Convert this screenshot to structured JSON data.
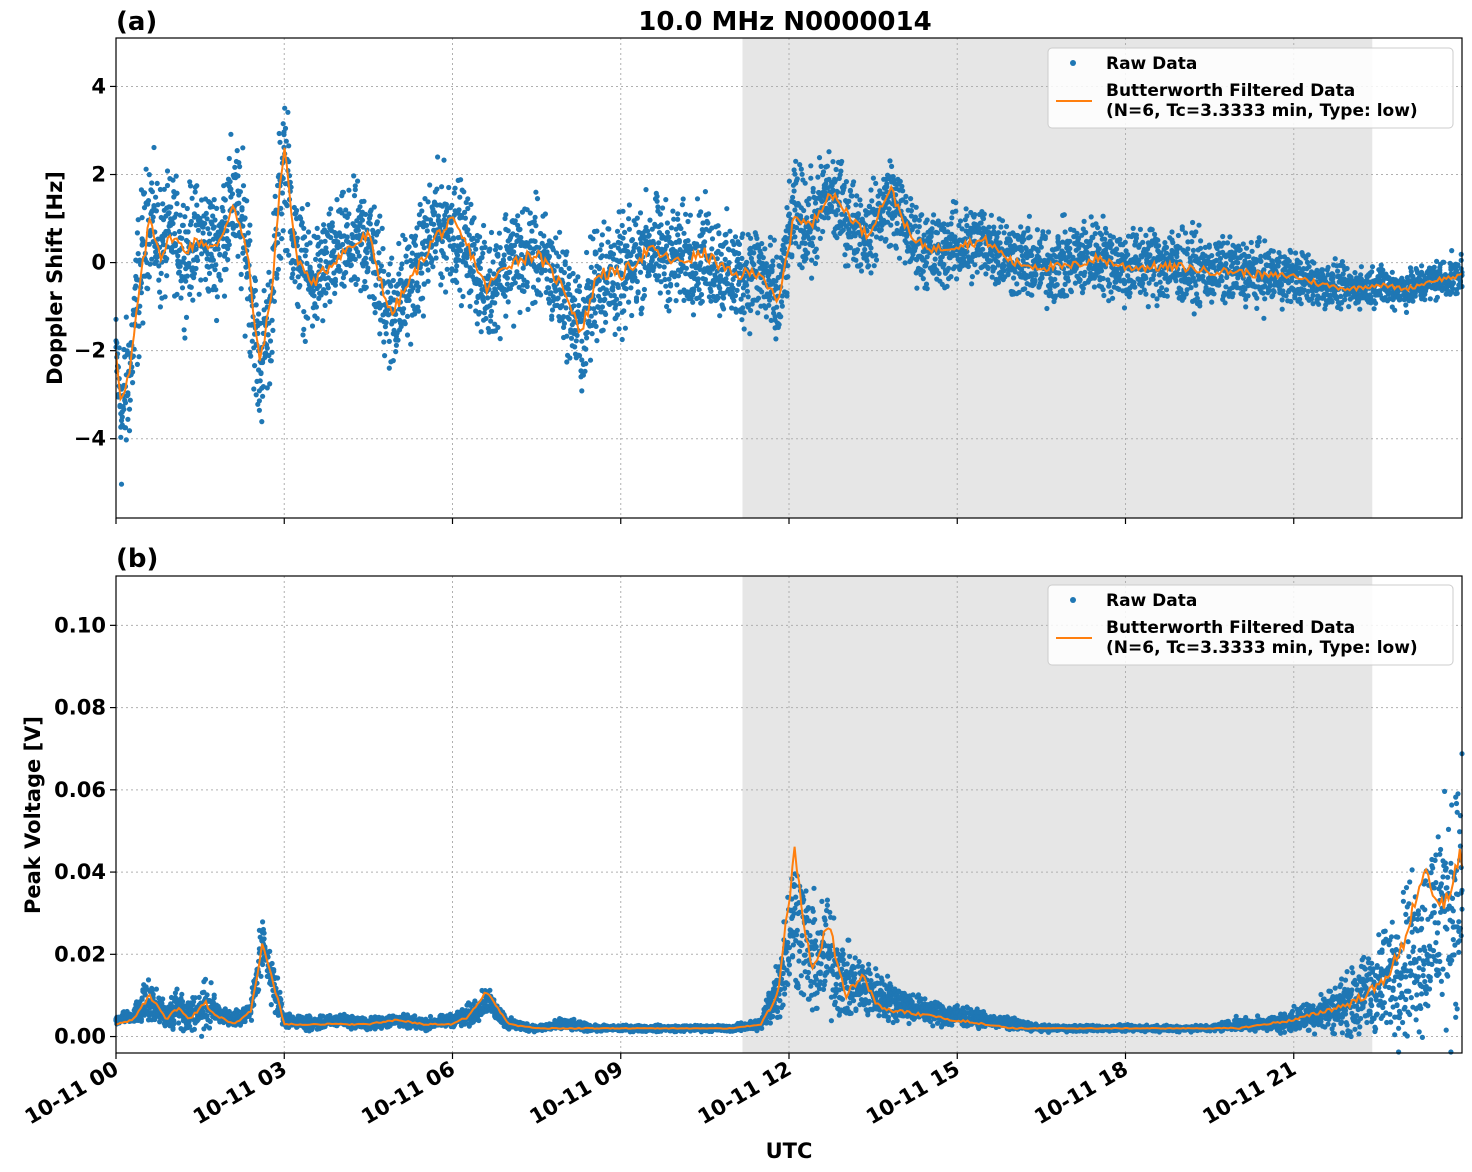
{
  "figure": {
    "title": "10.0 MHz N0000014",
    "xlabel": "UTC"
  },
  "chart_data": [
    {
      "type": "scatter",
      "panel_label": "(a)",
      "title": "10.0 MHz N0000014",
      "xlabel": "",
      "ylabel": "Doppler Shift [Hz]",
      "x_unit": "hours",
      "xlim": [
        0,
        24
      ],
      "ylim": [
        -5.8,
        5.1
      ],
      "yticks": [
        -4,
        -2,
        0,
        2,
        4
      ],
      "ytick_labels": [
        "−4",
        "−2",
        "0",
        "2",
        "4"
      ],
      "xticks": [
        0,
        3,
        6,
        9,
        12,
        15,
        18,
        21
      ],
      "xtick_labels": [
        "10-11 00",
        "10-11 03",
        "10-11 06",
        "10-11 09",
        "10-11 12",
        "10-11 15",
        "10-11 18",
        "10-11 21"
      ],
      "grid": true,
      "legend_position": "top-right",
      "shaded_region": {
        "x_start": 11.17,
        "x_end": 22.4,
        "color": "#e6e6e6"
      },
      "series": [
        {
          "name": "Raw Data",
          "style": "points",
          "color": "#1f77b4",
          "x": [
            0,
            0.1,
            0.25,
            0.4,
            0.6,
            0.8,
            1.0,
            1.2,
            1.5,
            1.8,
            2.1,
            2.35,
            2.55,
            2.75,
            3.0,
            3.2,
            3.5,
            4.0,
            4.5,
            4.9,
            5.3,
            5.7,
            6.0,
            6.3,
            6.6,
            7.0,
            7.5,
            8.0,
            8.3,
            8.6,
            9.0,
            9.5,
            10.0,
            10.5,
            11.0,
            11.5,
            11.8,
            12.1,
            12.4,
            12.7,
            13.0,
            13.4,
            13.8,
            14.2,
            14.6,
            15.0,
            15.5,
            16.0,
            16.5,
            17.0,
            17.5,
            18.0,
            18.5,
            19.0,
            19.5,
            20.0,
            20.5,
            21.0,
            21.5,
            22.0,
            22.5,
            23.0,
            23.5,
            24.0
          ],
          "y": [
            -2.0,
            -3.5,
            -2.5,
            -0.5,
            1.2,
            0.3,
            0.8,
            0.2,
            0.6,
            0.3,
            1.5,
            0.2,
            -2.5,
            -1.2,
            2.5,
            0.2,
            -0.5,
            0.3,
            0.5,
            -1.2,
            -0.3,
            0.8,
            0.8,
            0.3,
            -0.7,
            0.1,
            0.2,
            -0.7,
            -1.7,
            -0.2,
            -0.4,
            0.4,
            0.1,
            0.2,
            -0.3,
            -0.2,
            -1.0,
            1.2,
            0.8,
            1.6,
            1.1,
            0.6,
            1.5,
            0.5,
            0.2,
            0.4,
            0.5,
            0.1,
            -0.1,
            0.0,
            0.2,
            -0.1,
            0.0,
            -0.1,
            -0.2,
            -0.2,
            -0.3,
            -0.3,
            -0.5,
            -0.6,
            -0.5,
            -0.6,
            -0.4,
            -0.3
          ],
          "spread": [
            0.6,
            1.2,
            1.0,
            1.2,
            0.9,
            1.0,
            0.8,
            1.0,
            0.8,
            0.9,
            1.0,
            1.2,
            1.0,
            1.0,
            1.2,
            0.9,
            0.9,
            0.8,
            1.0,
            1.0,
            0.8,
            0.9,
            0.9,
            0.8,
            0.8,
            0.9,
            0.8,
            0.8,
            0.9,
            1.0,
            0.9,
            0.8,
            0.8,
            0.8,
            0.8,
            0.8,
            0.8,
            0.7,
            0.8,
            0.7,
            0.7,
            0.6,
            0.7,
            0.6,
            0.6,
            0.6,
            0.6,
            0.6,
            0.6,
            0.6,
            0.6,
            0.6,
            0.6,
            0.6,
            0.5,
            0.5,
            0.5,
            0.4,
            0.4,
            0.3,
            0.3,
            0.3,
            0.3,
            0.3
          ]
        },
        {
          "name": "Butterworth Filtered Data\n(N=6, Tc=3.3333 min, Type: low)",
          "style": "line",
          "color": "#ff7f0e",
          "x": [
            0,
            0.1,
            0.25,
            0.4,
            0.6,
            0.8,
            1.0,
            1.2,
            1.5,
            1.8,
            2.1,
            2.35,
            2.55,
            2.75,
            3.0,
            3.2,
            3.5,
            4.0,
            4.5,
            4.9,
            5.3,
            5.7,
            6.0,
            6.3,
            6.6,
            7.0,
            7.5,
            8.0,
            8.3,
            8.6,
            9.0,
            9.5,
            10.0,
            10.5,
            11.0,
            11.5,
            11.8,
            12.1,
            12.4,
            12.7,
            13.0,
            13.4,
            13.8,
            14.2,
            14.6,
            15.0,
            15.5,
            16.0,
            16.5,
            17.0,
            17.5,
            18.0,
            18.5,
            19.0,
            19.5,
            20.0,
            20.5,
            21.0,
            21.5,
            22.0,
            22.5,
            23.0,
            23.5,
            24.0
          ],
          "y": [
            -2.0,
            -3.2,
            -2.5,
            -0.8,
            1.0,
            0.2,
            0.6,
            0.3,
            0.5,
            0.3,
            1.4,
            0.1,
            -2.3,
            -1.0,
            2.8,
            0.2,
            -0.5,
            0.2,
            0.6,
            -1.2,
            -0.3,
            0.6,
            0.9,
            0.3,
            -0.6,
            0.0,
            0.2,
            -0.6,
            -1.6,
            -0.2,
            -0.3,
            0.3,
            0.0,
            0.2,
            -0.3,
            -0.2,
            -1.0,
            1.1,
            0.8,
            1.6,
            1.2,
            0.6,
            1.7,
            0.5,
            0.3,
            0.4,
            0.5,
            0.0,
            -0.1,
            -0.1,
            0.1,
            -0.1,
            -0.1,
            -0.1,
            -0.2,
            -0.2,
            -0.3,
            -0.3,
            -0.5,
            -0.6,
            -0.5,
            -0.6,
            -0.4,
            -0.3
          ]
        }
      ]
    },
    {
      "type": "scatter",
      "panel_label": "(b)",
      "title": "",
      "xlabel": "UTC",
      "ylabel": "Peak Voltage [V]",
      "x_unit": "hours",
      "xlim": [
        0,
        24
      ],
      "ylim": [
        -0.004,
        0.112
      ],
      "yticks": [
        0.0,
        0.02,
        0.04,
        0.06,
        0.08,
        0.1
      ],
      "ytick_labels": [
        "0.00",
        "0.02",
        "0.04",
        "0.06",
        "0.08",
        "0.10"
      ],
      "xticks": [
        0,
        3,
        6,
        9,
        12,
        15,
        18,
        21
      ],
      "xtick_labels": [
        "10-11 00",
        "10-11 03",
        "10-11 06",
        "10-11 09",
        "10-11 12",
        "10-11 15",
        "10-11 18",
        "10-11 21"
      ],
      "grid": true,
      "legend_position": "top-right",
      "shaded_region": {
        "x_start": 11.17,
        "x_end": 22.4,
        "color": "#e6e6e6"
      },
      "series": [
        {
          "name": "Raw Data",
          "style": "points",
          "color": "#1f77b4",
          "x": [
            0,
            0.3,
            0.6,
            0.9,
            1.1,
            1.3,
            1.6,
            1.8,
            2.1,
            2.4,
            2.6,
            2.75,
            3.0,
            3.5,
            4.0,
            4.5,
            5.0,
            5.5,
            6.0,
            6.3,
            6.6,
            7.0,
            7.5,
            8.0,
            8.5,
            9.0,
            9.5,
            10.0,
            10.5,
            11.0,
            11.5,
            11.8,
            12.1,
            12.4,
            12.7,
            13.0,
            13.3,
            13.6,
            14.0,
            14.5,
            15.0,
            15.5,
            16.0,
            16.5,
            17.0,
            17.5,
            18.0,
            18.5,
            19.0,
            19.5,
            20.0,
            20.5,
            21.0,
            21.5,
            22.0,
            22.5,
            22.9,
            23.3,
            23.6,
            24.0
          ],
          "y": [
            0.004,
            0.005,
            0.009,
            0.005,
            0.008,
            0.005,
            0.008,
            0.006,
            0.004,
            0.006,
            0.021,
            0.015,
            0.004,
            0.003,
            0.004,
            0.003,
            0.004,
            0.003,
            0.004,
            0.005,
            0.009,
            0.003,
            0.002,
            0.003,
            0.002,
            0.002,
            0.002,
            0.002,
            0.002,
            0.002,
            0.003,
            0.012,
            0.03,
            0.018,
            0.02,
            0.013,
            0.012,
            0.01,
            0.008,
            0.006,
            0.005,
            0.004,
            0.003,
            0.002,
            0.002,
            0.002,
            0.002,
            0.002,
            0.002,
            0.002,
            0.003,
            0.003,
            0.004,
            0.006,
            0.008,
            0.012,
            0.018,
            0.022,
            0.03,
            0.035
          ],
          "spread": [
            0.001,
            0.001,
            0.004,
            0.002,
            0.004,
            0.002,
            0.005,
            0.002,
            0.001,
            0.002,
            0.005,
            0.005,
            0.001,
            0.001,
            0.001,
            0.001,
            0.001,
            0.001,
            0.001,
            0.002,
            0.002,
            0.001,
            0.0005,
            0.001,
            0.0005,
            0.0005,
            0.0005,
            0.0005,
            0.0005,
            0.0005,
            0.001,
            0.006,
            0.012,
            0.01,
            0.01,
            0.006,
            0.005,
            0.004,
            0.003,
            0.002,
            0.002,
            0.001,
            0.001,
            0.0005,
            0.0005,
            0.0005,
            0.0005,
            0.0005,
            0.0005,
            0.0005,
            0.001,
            0.001,
            0.002,
            0.003,
            0.005,
            0.008,
            0.012,
            0.015,
            0.018,
            0.02
          ]
        },
        {
          "name": "Butterworth Filtered Data\n(N=6, Tc=3.3333 min, Type: low)",
          "style": "line",
          "color": "#ff7f0e",
          "x": [
            0,
            0.3,
            0.6,
            0.9,
            1.1,
            1.3,
            1.6,
            1.8,
            2.1,
            2.4,
            2.6,
            2.75,
            3.0,
            3.5,
            4.0,
            4.5,
            5.0,
            5.5,
            6.0,
            6.3,
            6.6,
            7.0,
            7.5,
            8.0,
            8.5,
            9.0,
            9.5,
            10.0,
            10.5,
            11.0,
            11.5,
            11.8,
            12.1,
            12.4,
            12.7,
            13.0,
            13.3,
            13.6,
            14.0,
            14.5,
            15.0,
            15.5,
            16.0,
            16.5,
            17.0,
            17.5,
            18.0,
            18.5,
            19.0,
            19.5,
            20.0,
            20.5,
            21.0,
            21.5,
            22.0,
            22.5,
            22.9,
            23.3,
            23.6,
            24.0
          ],
          "y": [
            0.003,
            0.004,
            0.01,
            0.004,
            0.007,
            0.004,
            0.008,
            0.005,
            0.003,
            0.006,
            0.022,
            0.016,
            0.003,
            0.003,
            0.003,
            0.003,
            0.004,
            0.003,
            0.003,
            0.005,
            0.011,
            0.003,
            0.002,
            0.002,
            0.002,
            0.002,
            0.002,
            0.002,
            0.002,
            0.002,
            0.003,
            0.01,
            0.045,
            0.015,
            0.028,
            0.01,
            0.015,
            0.007,
            0.006,
            0.005,
            0.004,
            0.003,
            0.002,
            0.002,
            0.002,
            0.002,
            0.002,
            0.002,
            0.002,
            0.002,
            0.002,
            0.003,
            0.004,
            0.006,
            0.008,
            0.012,
            0.02,
            0.04,
            0.03,
            0.044
          ]
        }
      ]
    }
  ]
}
